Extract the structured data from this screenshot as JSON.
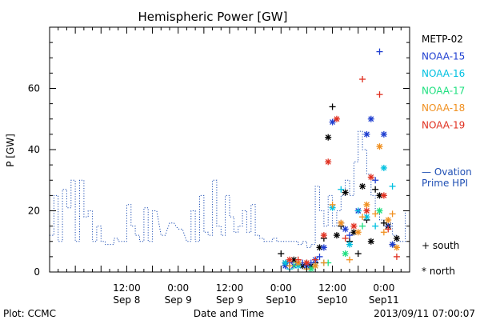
{
  "chart_data": {
    "type": "scatter",
    "title": "Hemispheric Power [GW]",
    "ylabel": "P [GW]",
    "xlabel": "Date and Time",
    "ylim": [
      0,
      80
    ],
    "xlim": [
      "2013-09-07 18:00",
      "2013-09-11 06:00"
    ],
    "y_ticks": [
      0,
      20,
      40,
      60
    ],
    "x_ticks": [
      {
        "x": "2013-09-08 12:00",
        "time": "12:00",
        "day": "Sep 8"
      },
      {
        "x": "2013-09-09 00:00",
        "time": "0:00",
        "day": "Sep 9"
      },
      {
        "x": "2013-09-09 12:00",
        "time": "12:00",
        "day": "Sep 9"
      },
      {
        "x": "2013-09-10 00:00",
        "time": "0:00",
        "day": "Sep10"
      },
      {
        "x": "2013-09-10 12:00",
        "time": "12:00",
        "day": "Sep10"
      },
      {
        "x": "2013-09-11 00:00",
        "time": "0:00",
        "day": "Sep11"
      }
    ],
    "legend_placement": "right",
    "markers": {
      "south": "+ south",
      "north": "* north"
    },
    "ovation_label": [
      "— Ovation",
      "Prime HPI"
    ],
    "ovation": {
      "name": "Ovation Prime HPI",
      "color": "#1f4fb4",
      "x": [
        "2013-09-07 18:00",
        "2013-09-07 19:00",
        "2013-09-07 20:00",
        "2013-09-07 21:00",
        "2013-09-07 22:00",
        "2013-09-07 23:00",
        "2013-09-08 00:00",
        "2013-09-08 01:00",
        "2013-09-08 02:00",
        "2013-09-08 03:00",
        "2013-09-08 04:00",
        "2013-09-08 05:00",
        "2013-09-08 06:00",
        "2013-09-08 07:00",
        "2013-09-08 08:00",
        "2013-09-08 09:00",
        "2013-09-08 10:00",
        "2013-09-08 11:00",
        "2013-09-08 12:00",
        "2013-09-08 13:00",
        "2013-09-08 14:00",
        "2013-09-08 15:00",
        "2013-09-08 16:00",
        "2013-09-08 17:00",
        "2013-09-08 18:00",
        "2013-09-08 20:00",
        "2013-09-08 22:00",
        "2013-09-09 00:00",
        "2013-09-09 02:00",
        "2013-09-09 03:00",
        "2013-09-09 04:00",
        "2013-09-09 05:00",
        "2013-09-09 06:00",
        "2013-09-09 07:00",
        "2013-09-09 08:00",
        "2013-09-09 09:00",
        "2013-09-09 10:00",
        "2013-09-09 11:00",
        "2013-09-09 12:00",
        "2013-09-09 13:00",
        "2013-09-09 14:00",
        "2013-09-09 15:00",
        "2013-09-09 16:00",
        "2013-09-09 17:00",
        "2013-09-09 18:00",
        "2013-09-09 19:00",
        "2013-09-09 20:00",
        "2013-09-09 21:00",
        "2013-09-09 22:00",
        "2013-09-09 23:00",
        "2013-09-10 00:00",
        "2013-09-10 01:00",
        "2013-09-10 02:00",
        "2013-09-10 03:00",
        "2013-09-10 04:00",
        "2013-09-10 05:00",
        "2013-09-10 06:00",
        "2013-09-10 07:00",
        "2013-09-10 08:00",
        "2013-09-10 09:00",
        "2013-09-10 10:00",
        "2013-09-10 11:00",
        "2013-09-10 12:00",
        "2013-09-10 13:00",
        "2013-09-10 14:00",
        "2013-09-10 15:00",
        "2013-09-10 16:00",
        "2013-09-10 17:00",
        "2013-09-10 18:00",
        "2013-09-10 19:00",
        "2013-09-10 20:00",
        "2013-09-10 21:00",
        "2013-09-10 22:00",
        "2013-09-10 23:00",
        "2013-09-11 00:00",
        "2013-09-11 01:00",
        "2013-09-11 02:00",
        "2013-09-11 03:00",
        "2013-09-11 04:00",
        "2013-09-11 05:00"
      ],
      "y": [
        12,
        25,
        10,
        27,
        21,
        30,
        10,
        30,
        18,
        20,
        10,
        15,
        10,
        9,
        9,
        11,
        10,
        10,
        22,
        15,
        12,
        10,
        21,
        10,
        20,
        12,
        16,
        14,
        10,
        20,
        10,
        25,
        13,
        12,
        30,
        15,
        12,
        25,
        18,
        13,
        15,
        20,
        13,
        22,
        12,
        11,
        10,
        10,
        11,
        10,
        10,
        10,
        10,
        10,
        9,
        10,
        8,
        9,
        28,
        20,
        15,
        25,
        15,
        20,
        25,
        30,
        25,
        36,
        46,
        40,
        32,
        25,
        20,
        17,
        15,
        16,
        12,
        10,
        10,
        20
      ]
    },
    "series": [
      {
        "name": "METP-02",
        "color": "#000000",
        "x": [
          "2013-09-10 00:00",
          "2013-09-10 01:00",
          "2013-09-10 02:00",
          "2013-09-10 03:00",
          "2013-09-10 04:00",
          "2013-09-10 05:00",
          "2013-09-10 06:00",
          "2013-09-10 07:00",
          "2013-09-10 08:00",
          "2013-09-10 09:00",
          "2013-09-10 10:00",
          "2013-09-10 11:00",
          "2013-09-10 12:00",
          "2013-09-10 13:00",
          "2013-09-10 14:00",
          "2013-09-10 15:00",
          "2013-09-10 16:00",
          "2013-09-10 17:00",
          "2013-09-10 18:00",
          "2013-09-10 19:00",
          "2013-09-10 20:00",
          "2013-09-10 21:00",
          "2013-09-10 22:00",
          "2013-09-10 23:00",
          "2013-09-11 00:00",
          "2013-09-11 01:00",
          "2013-09-11 02:00",
          "2013-09-11 03:00"
        ],
        "y": [
          6,
          3,
          2,
          4,
          3,
          2,
          3,
          2,
          3,
          8,
          11,
          44,
          54,
          12,
          15,
          26,
          10,
          13,
          6,
          28,
          17,
          10,
          27,
          25,
          16,
          15,
          9,
          11
        ],
        "marker": [
          "+",
          "*",
          "+",
          "*",
          "+",
          "*",
          "+",
          "*",
          "+",
          "*",
          "+",
          "*",
          "+",
          "*",
          "+",
          "*",
          "+",
          "*",
          "+",
          "*",
          "+",
          "*",
          "+",
          "*",
          "+",
          "*",
          "+",
          "*"
        ]
      },
      {
        "name": "NOAA-15",
        "color": "#1f3fd0",
        "x": [
          "2013-09-10 01:00",
          "2013-09-10 02:00",
          "2013-09-10 03:00",
          "2013-09-10 05:00",
          "2013-09-10 06:00",
          "2013-09-10 07:00",
          "2013-09-10 08:00",
          "2013-09-10 09:00",
          "2013-09-10 10:00",
          "2013-09-10 12:00",
          "2013-09-10 14:00",
          "2013-09-10 15:00",
          "2013-09-10 16:00",
          "2013-09-10 18:00",
          "2013-09-10 20:00",
          "2013-09-10 21:00",
          "2013-09-10 22:00",
          "2013-09-10 23:00",
          "2013-09-11 00:00",
          "2013-09-11 01:00",
          "2013-09-11 02:00"
        ],
        "y": [
          2,
          3,
          2,
          3,
          2,
          3,
          4,
          5,
          8,
          49,
          16,
          14,
          12,
          20,
          45,
          50,
          30,
          72,
          45,
          15,
          9
        ],
        "marker": [
          "*",
          "+",
          "*",
          "+",
          "*",
          "+",
          "*",
          "+",
          "*",
          "*",
          "+",
          "*",
          "+",
          "*",
          "*",
          "*",
          "+",
          "+",
          "*",
          "+",
          "*"
        ]
      },
      {
        "name": "NOAA-16",
        "color": "#00c0e0",
        "x": [
          "2013-09-10 01:00",
          "2013-09-10 02:00",
          "2013-09-10 04:00",
          "2013-09-10 06:00",
          "2013-09-10 08:00",
          "2013-09-10 10:00",
          "2013-09-10 12:00",
          "2013-09-10 14:00",
          "2013-09-10 16:00",
          "2013-09-10 18:00",
          "2013-09-10 20:00",
          "2013-09-10 22:00",
          "2013-09-11 00:00",
          "2013-09-11 02:00"
        ],
        "y": [
          3,
          1,
          2,
          1,
          2,
          3,
          21,
          27,
          9,
          20,
          18,
          15,
          34,
          28
        ],
        "marker": [
          "*",
          "+",
          "*",
          "+",
          "*",
          "+",
          "*",
          "+",
          "*",
          "+",
          "*",
          "+",
          "*",
          "+"
        ]
      },
      {
        "name": "NOAA-17",
        "color": "#20e080",
        "x": [
          "2013-09-10 03:00",
          "2013-09-10 07:00",
          "2013-09-10 11:00",
          "2013-09-10 15:00",
          "2013-09-10 19:00",
          "2013-09-10 23:00"
        ],
        "y": [
          2,
          1,
          3,
          6,
          15,
          20
        ],
        "marker": [
          "+",
          "*",
          "+",
          "*",
          "+",
          "*"
        ]
      },
      {
        "name": "NOAA-18",
        "color": "#f09020",
        "x": [
          "2013-09-10 02:00",
          "2013-09-10 04:00",
          "2013-09-10 06:00",
          "2013-09-10 08:00",
          "2013-09-10 10:00",
          "2013-09-10 12:00",
          "2013-09-10 14:00",
          "2013-09-10 16:00",
          "2013-09-10 18:00",
          "2013-09-10 19:00",
          "2013-09-10 20:00",
          "2013-09-10 22:00",
          "2013-09-10 23:00",
          "2013-09-11 00:00",
          "2013-09-11 01:00",
          "2013-09-11 02:00",
          "2013-09-11 03:00"
        ],
        "y": [
          2,
          3,
          1,
          2,
          3,
          22,
          16,
          4,
          13,
          18,
          22,
          19,
          41,
          13,
          17,
          19,
          8
        ],
        "marker": [
          "+",
          "*",
          "+",
          "*",
          "+",
          "+",
          "*",
          "+",
          "*",
          "+",
          "*",
          "+",
          "*",
          "+",
          "*",
          "+",
          "*"
        ]
      },
      {
        "name": "NOAA-19",
        "color": "#e03020",
        "x": [
          "2013-09-10 02:00",
          "2013-09-10 04:00",
          "2013-09-10 06:00",
          "2013-09-10 08:00",
          "2013-09-10 10:00",
          "2013-09-10 11:00",
          "2013-09-10 13:00",
          "2013-09-10 15:00",
          "2013-09-10 17:00",
          "2013-09-10 19:00",
          "2013-09-10 20:00",
          "2013-09-10 21:00",
          "2013-09-10 23:00",
          "2013-09-11 00:00",
          "2013-09-11 01:00",
          "2013-09-11 03:00"
        ],
        "y": [
          4,
          4,
          3,
          4,
          12,
          36,
          50,
          11,
          15,
          63,
          20,
          31,
          58,
          25,
          14,
          5
        ],
        "marker": [
          "*",
          "+",
          "*",
          "+",
          "*",
          "*",
          "*",
          "+",
          "*",
          "+",
          "*",
          "*",
          "+",
          "*",
          "+",
          "+"
        ]
      }
    ]
  },
  "footer": {
    "left": "Plot: CCMC",
    "right": "2013/09/11 07:00:07"
  }
}
